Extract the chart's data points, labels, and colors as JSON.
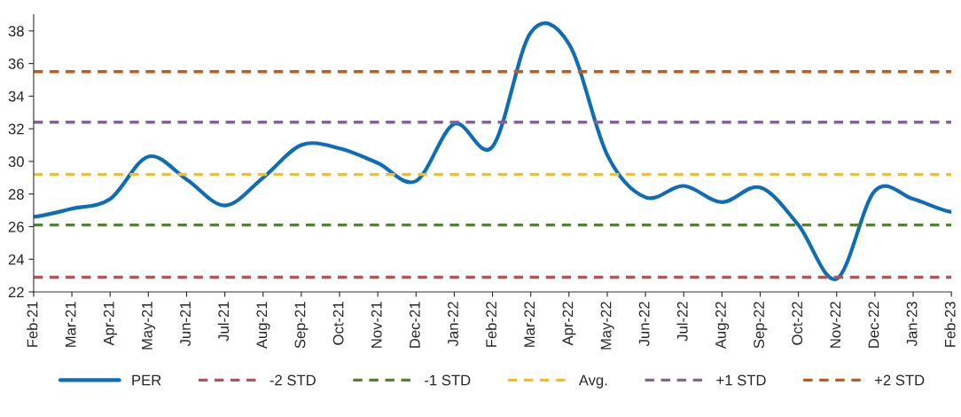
{
  "chart_data": {
    "type": "line",
    "categories": [
      "Feb-21",
      "Mar-21",
      "Apr-21",
      "May-21",
      "Jun-21",
      "Jul-21",
      "Aug-21",
      "Sep-21",
      "Oct-21",
      "Nov-21",
      "Dec-21",
      "Jan-22",
      "Feb-22",
      "Mar-22",
      "Apr-22",
      "May-22",
      "Jun-22",
      "Jul-22",
      "Aug-22",
      "Sep-22",
      "Oct-22",
      "Nov-22",
      "Dec-22",
      "Jan-23",
      "Feb-23"
    ],
    "series": [
      {
        "name": "PER",
        "color": "#0f6db5",
        "values": [
          26.6,
          27.1,
          27.7,
          30.3,
          28.9,
          27.3,
          29.0,
          31.0,
          30.8,
          29.9,
          28.8,
          32.3,
          30.9,
          37.9,
          37.2,
          30.4,
          27.8,
          28.5,
          27.5,
          28.4,
          26.1,
          22.8,
          28.2,
          27.7,
          26.9
        ]
      }
    ],
    "ref_lines": [
      {
        "axis": "y",
        "value": 22.9,
        "label": "-2 STD",
        "color": "#c0504d",
        "line_style": "dashed"
      },
      {
        "axis": "y",
        "value": 26.1,
        "label": "-1 STD",
        "color": "#548235",
        "line_style": "dashed"
      },
      {
        "axis": "y",
        "value": 29.2,
        "label": "Avg.",
        "color": "#ffc000",
        "line_style": "dashed"
      },
      {
        "axis": "y",
        "value": 32.4,
        "label": "+1 STD",
        "color": "#8064a2",
        "line_style": "dashed"
      },
      {
        "axis": "y",
        "value": 35.5,
        "label": "+2 STD",
        "color": "#c55a11",
        "line_style": "dashed"
      }
    ],
    "ylim": [
      22,
      39
    ],
    "yticks": [
      22,
      24,
      26,
      28,
      30,
      32,
      34,
      36,
      38
    ],
    "grid": false,
    "legend": "bottom",
    "marker": "none",
    "line_style": "solid"
  }
}
